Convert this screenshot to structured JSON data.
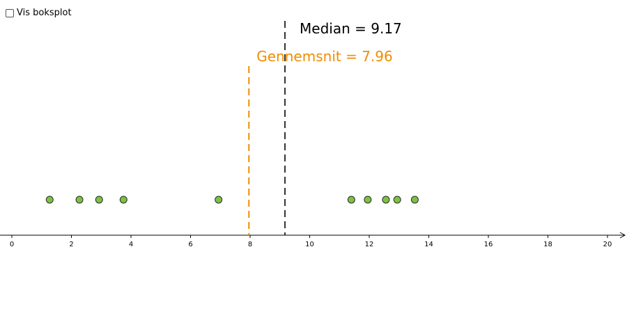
{
  "controls": {
    "show_boxplot_label": "Vis boksplot",
    "show_boxplot_checked": false
  },
  "colors": {
    "mean": "#f08c00",
    "median": "#333333",
    "point_fill": "#7dc142",
    "point_stroke": "#2b2b2b",
    "axis": "#000000"
  },
  "chart_data": {
    "type": "scatter",
    "x": [
      1.27,
      2.27,
      2.93,
      3.75,
      6.94,
      11.4,
      11.95,
      12.56,
      12.94,
      13.53
    ],
    "xlim": [
      0,
      20
    ],
    "x_ticks": [
      "0",
      "2",
      "4",
      "6",
      "8",
      "10",
      "12",
      "14",
      "16",
      "18",
      "20"
    ],
    "grid": false,
    "mean": {
      "value": 7.96,
      "label": "Gennemsnit = 7.96"
    },
    "median": {
      "value": 9.17,
      "label": "Median = 9.17"
    }
  }
}
